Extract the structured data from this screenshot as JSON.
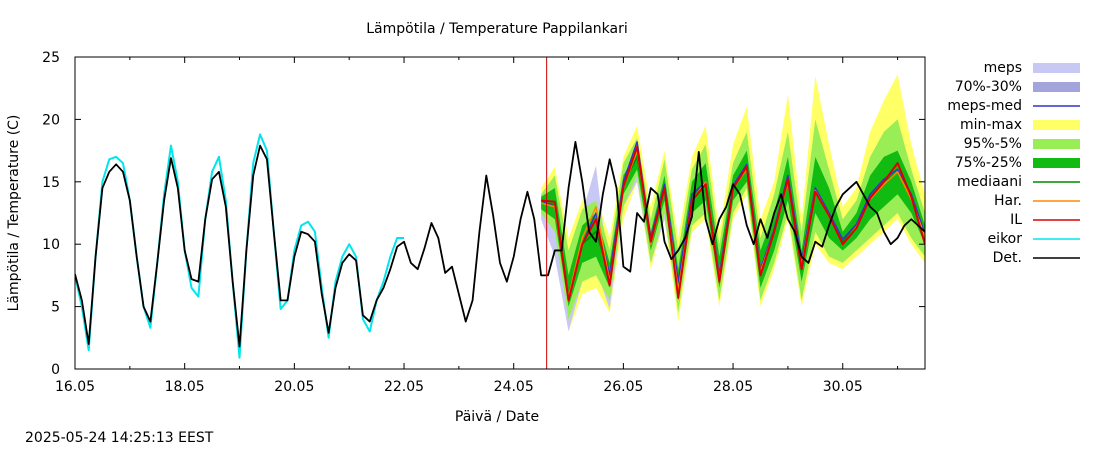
{
  "chart_data": {
    "type": "line",
    "title": "Lämpötila / Temperature   Pappilankari",
    "xlabel": "Päivä / Date",
    "ylabel": "Lämpötila / Temperature (C)",
    "ylim": [
      0,
      25
    ],
    "xlim": [
      "16.05 00:00",
      "31.05 12:00"
    ],
    "yticks": [
      0,
      5,
      10,
      15,
      20,
      25
    ],
    "xtick_labels": [
      "16.05",
      "18.05",
      "20.05",
      "22.05",
      "24.05",
      "26.05",
      "28.05",
      "30.05"
    ],
    "now_marker": "24.05 14:25",
    "now_marker_color": "#cc0000",
    "legend_position": "outside right",
    "grid": false,
    "x_day_index": [
      0.0,
      0.125,
      0.25,
      0.375,
      0.5,
      0.625,
      0.75,
      0.875,
      1.0,
      1.125,
      1.25,
      1.375,
      1.5,
      1.625,
      1.75,
      1.875,
      2.0,
      2.125,
      2.25,
      2.375,
      2.5,
      2.625,
      2.75,
      2.875,
      3.0,
      3.125,
      3.25,
      3.375,
      3.5,
      3.625,
      3.75,
      3.875,
      4.0,
      4.125,
      4.25,
      4.375,
      4.5,
      4.625,
      4.75,
      4.875,
      5.0,
      5.125,
      5.25,
      5.375,
      5.5,
      5.625,
      5.75,
      5.875,
      6.0,
      6.125,
      6.25,
      6.375,
      6.5,
      6.625,
      6.75,
      6.875,
      7.0,
      7.125,
      7.25,
      7.375,
      7.5,
      7.625,
      7.75,
      7.875,
      8.0,
      8.125,
      8.25,
      8.375,
      8.5,
      8.625
    ],
    "series": [
      {
        "name": "Det.",
        "color": "#000000",
        "x": [
          0.0,
          0.125,
          0.25,
          0.375,
          0.5,
          0.625,
          0.75,
          0.875,
          1.0,
          1.125,
          1.25,
          1.375,
          1.5,
          1.625,
          1.75,
          1.875,
          2.0,
          2.125,
          2.25,
          2.375,
          2.5,
          2.625,
          2.75,
          2.875,
          3.0,
          3.125,
          3.25,
          3.375,
          3.5,
          3.625,
          3.75,
          3.875,
          4.0,
          4.125,
          4.25,
          4.375,
          4.5,
          4.625,
          4.75,
          4.875,
          5.0,
          5.125,
          5.25,
          5.375,
          5.5,
          5.625,
          5.75,
          5.875,
          6.0,
          6.125,
          6.25,
          6.375,
          6.5,
          6.625,
          6.75,
          6.875,
          7.0,
          7.125,
          7.25,
          7.375,
          7.5,
          7.625,
          7.75,
          7.875,
          8.0,
          8.125,
          8.25,
          8.375,
          8.5,
          8.625,
          8.75,
          8.875,
          9.0,
          9.125,
          9.25,
          9.375,
          9.5,
          9.625,
          9.75,
          9.875,
          10.0,
          10.125,
          10.25,
          10.375,
          10.5,
          10.625,
          10.75,
          10.875,
          11.0,
          11.125,
          11.25,
          11.375,
          11.5,
          11.625,
          11.75,
          11.875,
          12.0,
          12.125,
          12.25,
          12.375,
          12.5,
          12.625,
          12.75,
          12.875,
          13.0,
          13.125,
          13.25,
          13.375,
          13.5,
          13.625,
          13.75,
          13.875,
          14.0,
          14.125,
          14.25,
          14.375,
          14.5,
          14.625,
          14.75,
          14.875,
          15.0,
          15.125,
          15.25,
          15.375,
          15.5
        ],
        "y": [
          7.6,
          5.5,
          2.0,
          9.0,
          14.5,
          15.8,
          16.4,
          15.8,
          13.5,
          9.0,
          5.0,
          3.8,
          8.5,
          13.5,
          16.9,
          14.5,
          9.5,
          7.2,
          7.0,
          12.0,
          15.2,
          15.8,
          13.0,
          7.0,
          1.8,
          9.5,
          15.5,
          17.9,
          16.8,
          11.0,
          5.5,
          5.5,
          9.0,
          11.0,
          10.8,
          10.2,
          6.0,
          2.9,
          6.5,
          8.5,
          9.2,
          8.7,
          4.3,
          3.8,
          5.5,
          6.5,
          8.0,
          9.8,
          10.2,
          8.5,
          8.0,
          9.7,
          11.7,
          10.5,
          7.7,
          8.2,
          6.0,
          3.8,
          5.5,
          11.0,
          15.5,
          12.3,
          8.5,
          7.0,
          9.0,
          12.0,
          14.2,
          12.0,
          7.5,
          7.5,
          9.5,
          9.5,
          14.5,
          18.2,
          15.0,
          11.0,
          10.2,
          14.0,
          16.8,
          14.5,
          8.2,
          7.8,
          12.5,
          11.8,
          14.5,
          14.0,
          10.2,
          8.8,
          9.5,
          10.5,
          12.2,
          17.4,
          12.0,
          10.0,
          12.0,
          13.0,
          14.8,
          14.0,
          11.5,
          10.0,
          12.0,
          10.5,
          12.5,
          14.0,
          12.0,
          11.0,
          9.0,
          8.5,
          10.2,
          9.8,
          11.5,
          13.0,
          14.0,
          14.5,
          15.0,
          14.0,
          13.0,
          12.5,
          11.0,
          10.0,
          10.5,
          11.5,
          12.0,
          11.5,
          11.0
        ]
      },
      {
        "name": "eikor",
        "color": "#00e5ee",
        "x": [
          0.0,
          0.125,
          0.25,
          0.375,
          0.5,
          0.625,
          0.75,
          0.875,
          1.0,
          1.125,
          1.25,
          1.375,
          1.5,
          1.625,
          1.75,
          1.875,
          2.0,
          2.125,
          2.25,
          2.375,
          2.5,
          2.625,
          2.75,
          2.875,
          3.0,
          3.125,
          3.25,
          3.375,
          3.5,
          3.625,
          3.75,
          3.875,
          4.0,
          4.125,
          4.25,
          4.375,
          4.5,
          4.625,
          4.75,
          4.875,
          5.0,
          5.125,
          5.25,
          5.375,
          5.5,
          5.625,
          5.75,
          5.875,
          6.0
        ],
        "y": [
          7.5,
          5.0,
          1.5,
          9.0,
          15.0,
          16.8,
          17.0,
          16.5,
          13.5,
          9.0,
          5.0,
          3.3,
          8.5,
          14.0,
          17.9,
          15.0,
          9.5,
          6.5,
          5.8,
          12.0,
          15.8,
          17.0,
          13.5,
          7.0,
          0.9,
          9.5,
          16.5,
          18.8,
          17.5,
          11.0,
          4.8,
          5.5,
          9.5,
          11.5,
          11.8,
          11.0,
          6.5,
          2.5,
          7.0,
          9.0,
          10.0,
          9.0,
          4.0,
          3.0,
          5.5,
          7.0,
          9.0,
          10.5,
          10.5
        ]
      }
    ],
    "legend": [
      {
        "label": "meps",
        "kind": "band",
        "color": "#c8c8f5"
      },
      {
        "label": "70%-30%",
        "kind": "band",
        "color": "#a4a4dc"
      },
      {
        "label": "meps-med",
        "kind": "line",
        "color": "#3333cc"
      },
      {
        "label": "min-max",
        "kind": "band",
        "color": "#ffff66"
      },
      {
        "label": "95%-5%",
        "kind": "band",
        "color": "#99ee55"
      },
      {
        "label": "75%-25%",
        "kind": "band",
        "color": "#11bb11"
      },
      {
        "label": "mediaani",
        "kind": "line",
        "color": "#008800"
      },
      {
        "label": "Har.",
        "kind": "line",
        "color": "#ff8800"
      },
      {
        "label": "IL",
        "kind": "line",
        "color": "#dd0000"
      },
      {
        "label": "eikor",
        "kind": "line",
        "color": "#00e5ee"
      },
      {
        "label": "Det.",
        "kind": "line",
        "color": "#000000"
      }
    ],
    "forecast": {
      "x": [
        8.5,
        8.75,
        9.0,
        9.25,
        9.5,
        9.75,
        10.0,
        10.25,
        10.5,
        10.75,
        11.0,
        11.25,
        11.5,
        11.75,
        12.0,
        12.25,
        12.5,
        12.75,
        13.0,
        13.25,
        13.5,
        13.75,
        14.0,
        14.25,
        14.5,
        14.75,
        15.0,
        15.25,
        15.5
      ],
      "minmax_hi": [
        14.5,
        16.2,
        10.5,
        13.5,
        14.0,
        10.5,
        17.0,
        19.5,
        13.0,
        17.5,
        10.5,
        17.0,
        19.5,
        11.0,
        18.0,
        21.0,
        12.0,
        15.0,
        22.0,
        12.0,
        23.5,
        18.0,
        13.0,
        14.5,
        19.0,
        21.5,
        23.6,
        18.0,
        14.0
      ],
      "minmax_lo": [
        12.0,
        10.0,
        3.0,
        6.0,
        6.5,
        4.5,
        12.0,
        15.0,
        8.0,
        12.0,
        3.8,
        11.0,
        12.0,
        5.0,
        12.0,
        14.0,
        5.0,
        8.0,
        12.0,
        5.0,
        10.0,
        8.5,
        8.0,
        9.0,
        10.0,
        11.0,
        12.0,
        10.0,
        8.5
      ],
      "p95_hi": [
        14.0,
        15.5,
        9.5,
        12.8,
        13.5,
        9.5,
        16.5,
        18.5,
        12.0,
        16.8,
        9.5,
        16.0,
        18.0,
        10.0,
        16.5,
        19.0,
        10.5,
        14.0,
        19.0,
        11.0,
        20.0,
        16.0,
        12.0,
        13.5,
        17.0,
        19.0,
        20.0,
        16.0,
        12.5
      ],
      "p95_lo": [
        12.5,
        11.0,
        4.0,
        7.0,
        7.5,
        5.5,
        13.0,
        15.5,
        8.5,
        12.5,
        4.5,
        11.5,
        12.5,
        5.5,
        12.5,
        14.5,
        5.5,
        8.5,
        12.5,
        5.5,
        11.0,
        9.0,
        8.5,
        9.5,
        10.5,
        11.5,
        12.5,
        10.5,
        9.0
      ],
      "p75_hi": [
        13.8,
        14.5,
        7.5,
        11.5,
        12.5,
        8.5,
        15.5,
        17.5,
        11.0,
        15.5,
        8.0,
        15.0,
        16.5,
        9.0,
        15.5,
        17.5,
        9.5,
        12.5,
        17.0,
        9.5,
        17.0,
        14.5,
        11.0,
        12.5,
        15.5,
        17.0,
        17.5,
        15.0,
        11.5
      ],
      "p75_lo": [
        12.8,
        12.0,
        5.0,
        8.5,
        9.0,
        6.5,
        14.0,
        16.0,
        9.5,
        13.5,
        5.5,
        12.5,
        13.5,
        6.5,
        13.5,
        15.0,
        6.5,
        9.5,
        13.5,
        7.0,
        12.5,
        10.5,
        9.5,
        10.5,
        12.0,
        13.0,
        14.0,
        12.5,
        10.0
      ],
      "mediaani": [
        13.3,
        13.2,
        6.0,
        10.0,
        11.0,
        7.5,
        14.8,
        17.0,
        10.2,
        14.5,
        6.5,
        13.8,
        15.0,
        7.5,
        14.5,
        16.2,
        8.0,
        11.0,
        15.2,
        8.5,
        14.5,
        12.5,
        10.2,
        11.5,
        13.8,
        15.0,
        15.8,
        13.8,
        10.8
      ],
      "meps_hi": [
        14.0,
        15.0,
        6.0,
        12.5,
        16.3,
        7.0,
        15.5,
        17.5,
        11.0,
        15.0,
        7.5,
        14.5,
        16.0,
        8.5,
        15.0,
        17.0,
        8.5,
        11.5,
        16.0,
        9.0,
        15.0,
        13.0,
        10.5,
        12.0,
        14.5,
        15.5,
        16.5,
        14.5,
        11.0
      ],
      "meps_lo": [
        12.0,
        9.0,
        3.0,
        7.0,
        8.0,
        4.8,
        13.0,
        15.0,
        8.5,
        12.0,
        5.5,
        12.0,
        13.0,
        6.0,
        13.0,
        14.5,
        6.5,
        9.5,
        13.5,
        7.0,
        12.5,
        10.5,
        9.5,
        10.5,
        12.5,
        13.5,
        14.5,
        12.5,
        9.5
      ],
      "meps_med": [
        13.5,
        13.0,
        5.5,
        10.0,
        12.5,
        7.5,
        15.0,
        18.2,
        10.5,
        14.8,
        7.0,
        14.0,
        15.0,
        7.5,
        14.7,
        16.4,
        8.0,
        11.2,
        15.5,
        8.7,
        14.5,
        12.5,
        10.4,
        11.6,
        14.0,
        15.2,
        16.0,
        14.0,
        10.8
      ],
      "har": [
        13.3,
        13.0,
        5.8,
        10.5,
        13.0,
        7.0,
        14.5,
        17.5,
        10.0,
        14.5,
        6.3,
        13.5,
        15.0,
        7.2,
        14.5,
        16.0,
        7.8,
        11.0,
        15.0,
        8.3,
        14.3,
        12.3,
        10.0,
        11.4,
        13.6,
        14.8,
        15.8,
        13.6,
        10.6
      ],
      "il": [
        13.5,
        13.4,
        5.5,
        10.0,
        12.0,
        6.7,
        14.6,
        17.8,
        10.2,
        14.5,
        5.7,
        13.5,
        14.8,
        7.0,
        14.5,
        16.2,
        7.5,
        11.0,
        15.2,
        8.0,
        14.2,
        12.3,
        10.0,
        11.3,
        13.7,
        15.0,
        16.5,
        13.8,
        10.0
      ]
    }
  },
  "footer": {
    "timestamp": "2025-05-24 14:25:13 EEST"
  }
}
